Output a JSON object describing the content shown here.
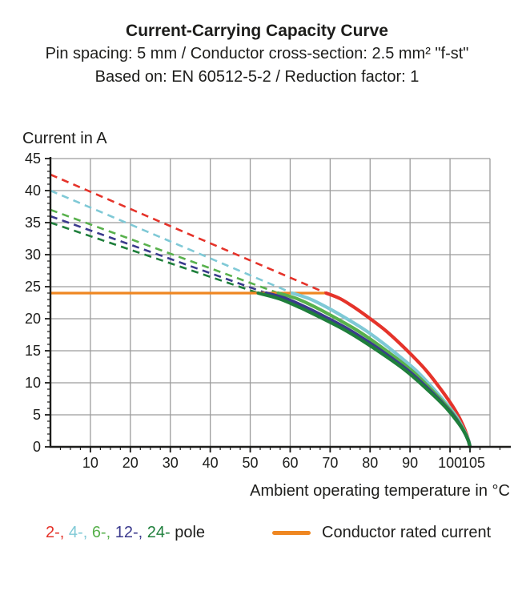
{
  "title": {
    "line1": "Current-Carrying Capacity Curve",
    "line2": "Pin spacing: 5 mm / Conductor cross-section: 2.5 mm² \"f-st\"",
    "line3": "Based on: EN 60512-5-2 / Reduction factor: 1"
  },
  "axes": {
    "y_label": "Current in A",
    "x_label": "Ambient operating temperature in °C",
    "y_ticks": [
      0,
      5,
      10,
      15,
      20,
      25,
      30,
      35,
      40,
      45
    ],
    "x_ticks": [
      10,
      20,
      30,
      40,
      50,
      60,
      70,
      80,
      90,
      100,
      105
    ],
    "x_minor_step": 2.5,
    "y_minor_step": 1,
    "x_range": [
      0,
      110
    ],
    "y_range": [
      0,
      45
    ],
    "grid_color": "#9c9c9c",
    "axis_color": "#1d1d1b"
  },
  "legend": {
    "pole_items": [
      {
        "label": "2-,",
        "color": "#e5332a"
      },
      {
        "label": "4-,",
        "color": "#7fc9d6"
      },
      {
        "label": "6-,",
        "color": "#58b14c"
      },
      {
        "label": "12-,",
        "color": "#3b3a8d"
      },
      {
        "label": "24-",
        "color": "#1f7f3c"
      }
    ],
    "pole_suffix": "pole",
    "conductor_label": "Conductor rated current",
    "conductor_color": "#ef8722"
  },
  "chart_data": {
    "type": "line",
    "title": "Current-Carrying Capacity Curve",
    "xlabel": "Ambient operating temperature in °C",
    "ylabel": "Current in A",
    "xlim": [
      0,
      110
    ],
    "ylim": [
      0,
      45
    ],
    "grid": true,
    "rated_current": {
      "value": 24,
      "x_start": 0,
      "x_end": 69,
      "color": "#ef8722",
      "label": "Conductor rated current"
    },
    "series": [
      {
        "name": "2-pole",
        "color": "#e5332a",
        "current_at_0C": 42.5,
        "knee_temp": 69,
        "end_temp": 105,
        "dashed": [
          [
            0,
            42.5
          ],
          [
            69,
            24
          ]
        ],
        "solid": [
          [
            69,
            24
          ],
          [
            72.6,
            23.1
          ],
          [
            76.2,
            21.7
          ],
          [
            79.8,
            20.1
          ],
          [
            83.4,
            18.4
          ],
          [
            87,
            16.4
          ],
          [
            90.6,
            14.2
          ],
          [
            94.2,
            11.8
          ],
          [
            97.8,
            8.9
          ],
          [
            100.5,
            6.5
          ],
          [
            102.3,
            4.6
          ],
          [
            103.7,
            2.7
          ],
          [
            104.6,
            1.1
          ],
          [
            105,
            0
          ]
        ]
      },
      {
        "name": "4-pole",
        "color": "#7fc9d6",
        "current_at_0C": 40,
        "knee_temp": 60.5,
        "end_temp": 105,
        "dashed": [
          [
            0,
            40
          ],
          [
            60.5,
            24
          ]
        ],
        "solid": [
          [
            60.5,
            24
          ],
          [
            64.9,
            23.1
          ],
          [
            69.4,
            21.7
          ],
          [
            73.9,
            20.1
          ],
          [
            78.3,
            18.4
          ],
          [
            82.8,
            16.4
          ],
          [
            87.2,
            14.2
          ],
          [
            91.7,
            11.8
          ],
          [
            96.1,
            8.9
          ],
          [
            99.4,
            6.5
          ],
          [
            101.7,
            4.6
          ],
          [
            103.4,
            2.7
          ],
          [
            104.6,
            1.1
          ],
          [
            105,
            0
          ]
        ]
      },
      {
        "name": "6-pole",
        "color": "#58b14c",
        "current_at_0C": 37,
        "knee_temp": 57,
        "end_temp": 105,
        "dashed": [
          [
            0,
            37
          ],
          [
            57,
            24
          ]
        ],
        "solid": [
          [
            57,
            24
          ],
          [
            61.8,
            23.1
          ],
          [
            66.6,
            21.7
          ],
          [
            71.4,
            20.1
          ],
          [
            76.2,
            18.4
          ],
          [
            81,
            16.4
          ],
          [
            85.8,
            14.2
          ],
          [
            90.6,
            11.8
          ],
          [
            95.4,
            8.9
          ],
          [
            99,
            6.5
          ],
          [
            101.4,
            4.6
          ],
          [
            103.3,
            2.7
          ],
          [
            104.5,
            1.1
          ],
          [
            105,
            0
          ]
        ]
      },
      {
        "name": "12-pole",
        "color": "#3b3a8d",
        "current_at_0C": 36,
        "knee_temp": 54,
        "end_temp": 105,
        "dashed": [
          [
            0,
            36
          ],
          [
            54,
            24
          ]
        ],
        "solid": [
          [
            54,
            24
          ],
          [
            59.1,
            23.1
          ],
          [
            64.2,
            21.7
          ],
          [
            69.3,
            20.1
          ],
          [
            74.4,
            18.4
          ],
          [
            79.5,
            16.4
          ],
          [
            84.6,
            14.2
          ],
          [
            89.7,
            11.8
          ],
          [
            94.8,
            8.9
          ],
          [
            98.6,
            6.5
          ],
          [
            101.2,
            4.6
          ],
          [
            103.2,
            2.7
          ],
          [
            104.5,
            1.1
          ],
          [
            105,
            0
          ]
        ]
      },
      {
        "name": "24-pole",
        "color": "#1f7f3c",
        "current_at_0C": 35,
        "knee_temp": 52,
        "end_temp": 105,
        "dashed": [
          [
            0,
            35
          ],
          [
            52,
            24
          ]
        ],
        "solid": [
          [
            52,
            24
          ],
          [
            57.3,
            23.1
          ],
          [
            62.6,
            21.7
          ],
          [
            67.9,
            20.1
          ],
          [
            73.2,
            18.4
          ],
          [
            78.5,
            16.4
          ],
          [
            83.8,
            14.2
          ],
          [
            89.1,
            11.8
          ],
          [
            94.4,
            8.9
          ],
          [
            98.4,
            6.5
          ],
          [
            101,
            4.6
          ],
          [
            103.2,
            2.7
          ],
          [
            104.5,
            1.1
          ],
          [
            105,
            0
          ]
        ]
      }
    ]
  }
}
